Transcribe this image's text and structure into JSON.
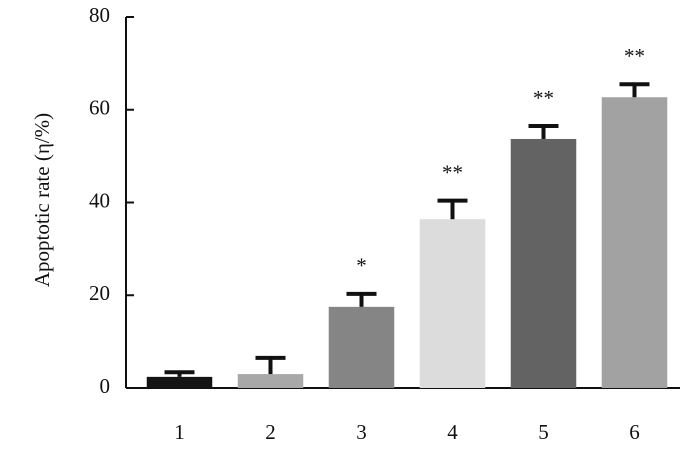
{
  "chart_data": {
    "type": "bar",
    "y_label": "Apoptotic rate (η/%)",
    "categories": [
      "1",
      "2",
      "3",
      "4",
      "5",
      "6"
    ],
    "values": [
      2.4,
      3.0,
      17.5,
      36.4,
      53.7,
      62.7
    ],
    "errors": [
      1.0,
      3.5,
      2.8,
      4.0,
      2.8,
      2.8
    ],
    "annotations": [
      null,
      null,
      "*",
      "**",
      "**",
      "**"
    ],
    "colors": [
      "#141414",
      "#a8a8a8",
      "#858585",
      "#dcdcdc",
      "#636363",
      "#a2a2a2"
    ],
    "ylim": [
      0,
      80
    ],
    "yticks": [
      0,
      20,
      40,
      60,
      80
    ],
    "grid": false
  }
}
